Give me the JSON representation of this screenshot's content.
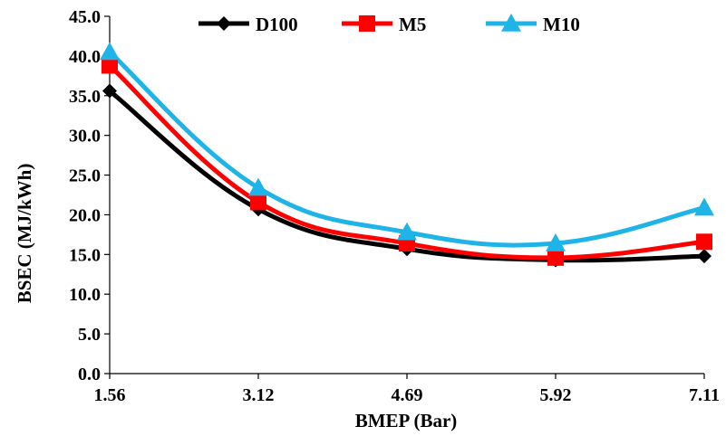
{
  "chart_data": {
    "type": "line",
    "title": "",
    "xlabel": "BMEP (Bar)",
    "ylabel": "BSEC (MJ/kWh)",
    "categories": [
      "1.56",
      "3.12",
      "4.69",
      "5.92",
      "7.11"
    ],
    "ylim": [
      0,
      45
    ],
    "yticks": [
      "0.0",
      "5.0",
      "10.0",
      "15.0",
      "20.0",
      "25.0",
      "30.0",
      "35.0",
      "40.0",
      "45.0"
    ],
    "grid": false,
    "legend_position": "top",
    "series": [
      {
        "name": "D100",
        "values": [
          35.6,
          20.7,
          15.7,
          14.3,
          14.8
        ],
        "color": "#000000",
        "marker": "diamond"
      },
      {
        "name": "M5",
        "values": [
          38.8,
          21.6,
          16.4,
          14.6,
          16.6
        ],
        "color": "#ff0000",
        "marker": "square"
      },
      {
        "name": "M10",
        "values": [
          40.5,
          23.4,
          17.8,
          16.4,
          20.9
        ],
        "color": "#1fb4e8",
        "marker": "triangle"
      }
    ]
  }
}
